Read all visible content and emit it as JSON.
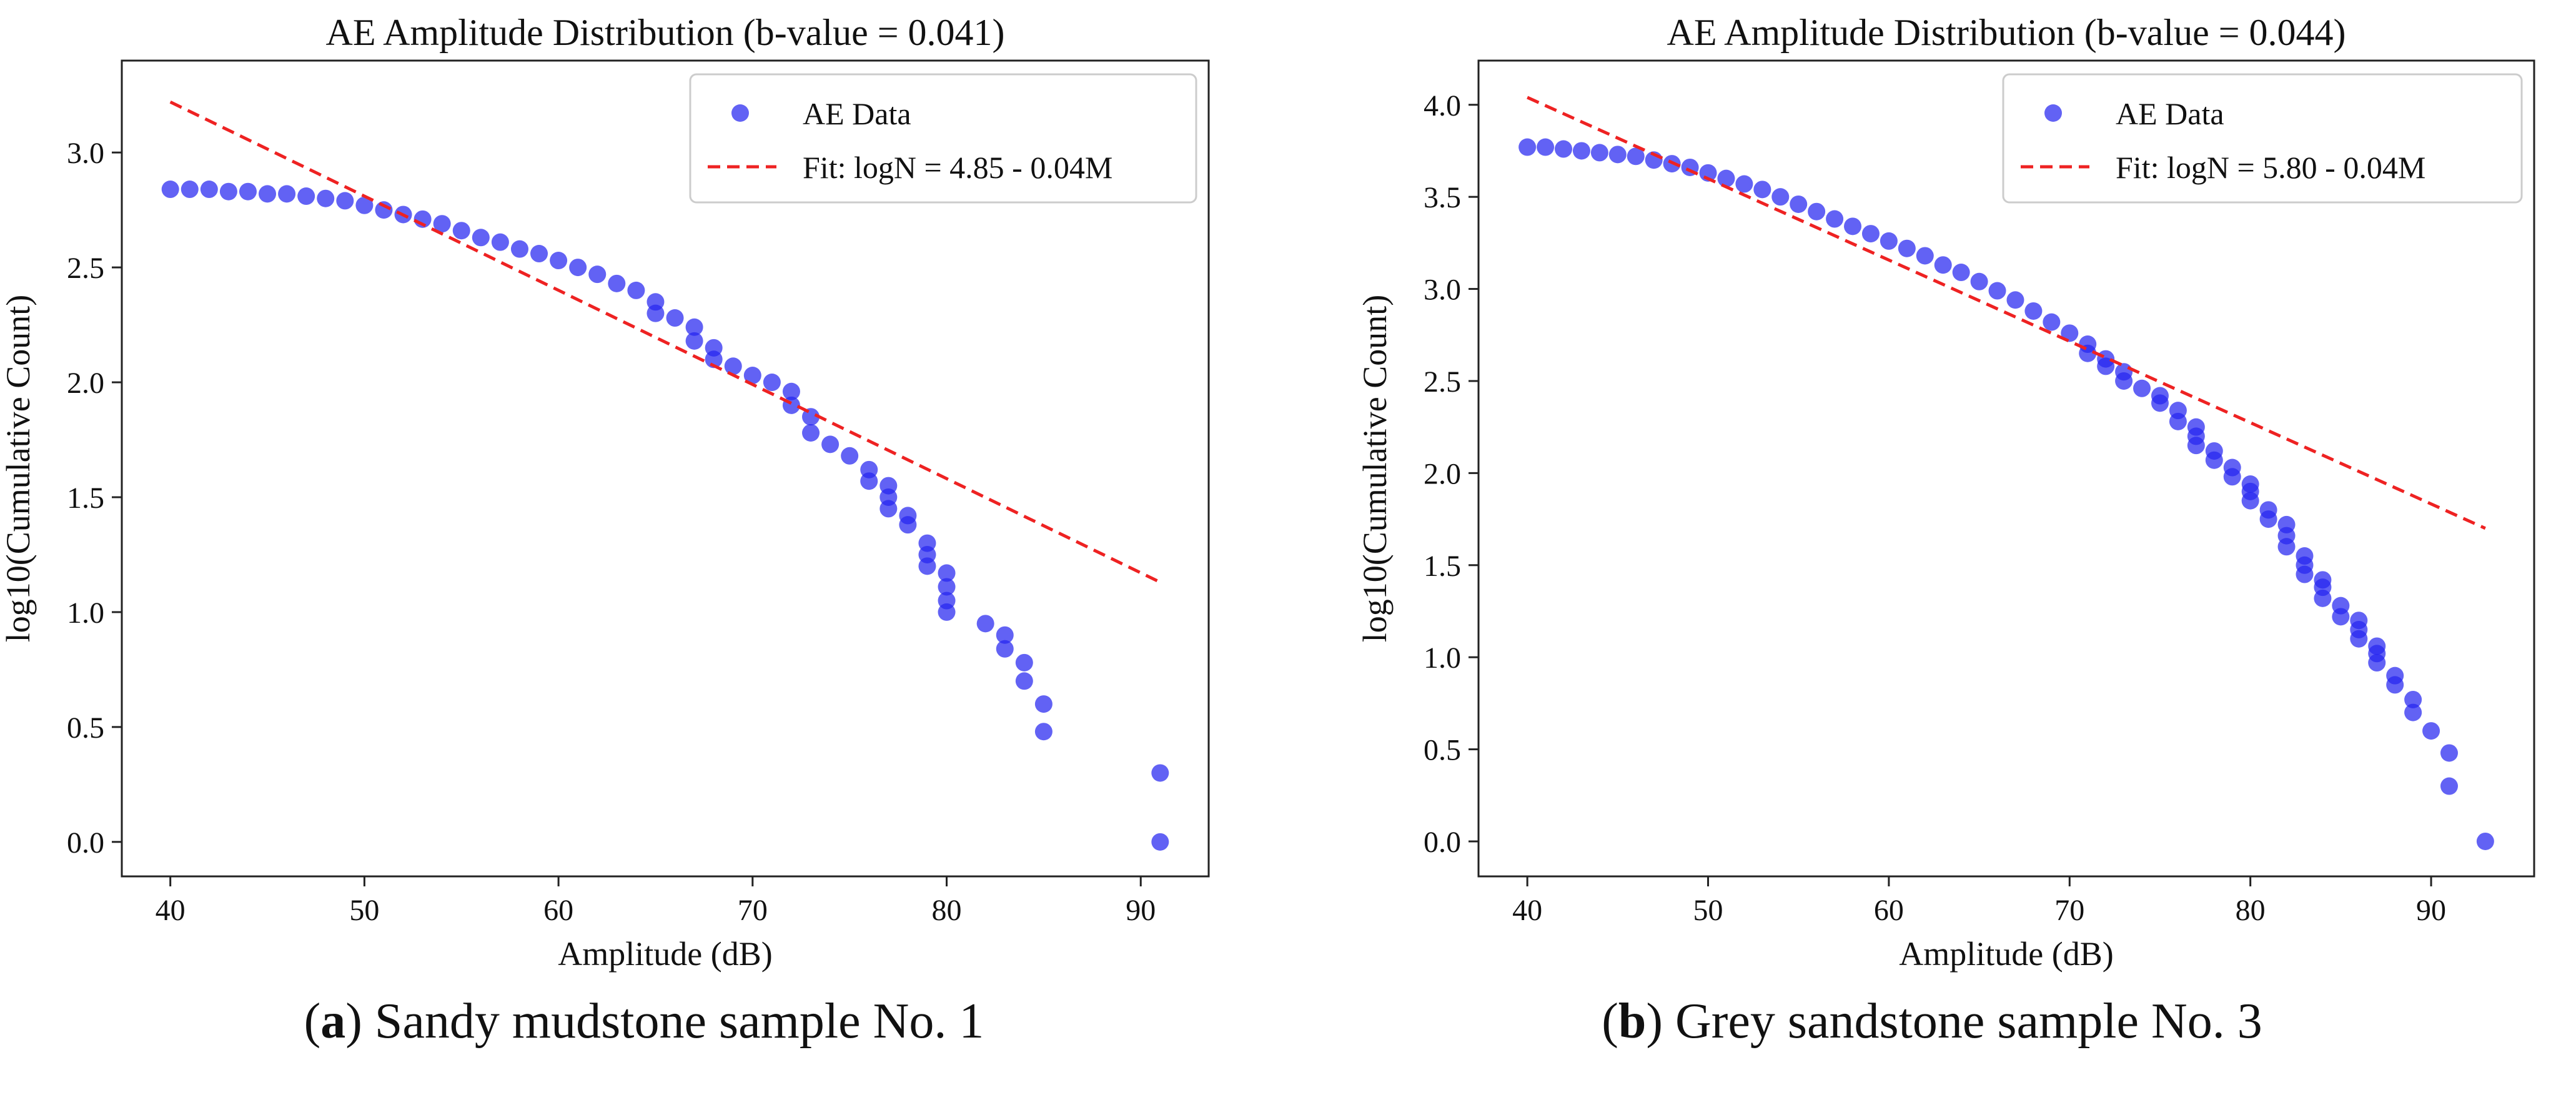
{
  "chart_data": [
    {
      "type": "scatter",
      "title": "AE Amplitude Distribution (b-value = 0.041)",
      "xlabel": "Amplitude (dB)",
      "ylabel": "log10(Cumulative Count)",
      "xlim": [
        37.5,
        93.5
      ],
      "ylim": [
        -0.15,
        3.4
      ],
      "xticks": [
        40,
        50,
        60,
        70,
        80,
        90
      ],
      "yticks": [
        "0.0",
        "0.5",
        "1.0",
        "1.5",
        "2.0",
        "2.5",
        "3.0"
      ],
      "legend": {
        "position": "top-right",
        "scatter_label": "AE Data",
        "line_label": "Fit: logN = 4.85 - 0.04M"
      },
      "caption": {
        "letter": "a",
        "text": "Sandy mudstone sample No. 1"
      },
      "series": [
        {
          "name": "AE Data",
          "kind": "scatter",
          "color": "#2525f0",
          "points": [
            [
              40,
              2.84
            ],
            [
              41,
              2.84
            ],
            [
              42,
              2.84
            ],
            [
              43,
              2.83
            ],
            [
              44,
              2.83
            ],
            [
              45,
              2.82
            ],
            [
              46,
              2.82
            ],
            [
              47,
              2.81
            ],
            [
              48,
              2.8
            ],
            [
              49,
              2.79
            ],
            [
              50,
              2.77
            ],
            [
              51,
              2.75
            ],
            [
              52,
              2.73
            ],
            [
              53,
              2.71
            ],
            [
              54,
              2.69
            ],
            [
              55,
              2.66
            ],
            [
              56,
              2.63
            ],
            [
              57,
              2.61
            ],
            [
              58,
              2.58
            ],
            [
              59,
              2.56
            ],
            [
              60,
              2.53
            ],
            [
              61,
              2.5
            ],
            [
              62,
              2.47
            ],
            [
              63,
              2.43
            ],
            [
              64,
              2.4
            ],
            [
              65,
              2.35
            ],
            [
              65,
              2.3
            ],
            [
              66,
              2.28
            ],
            [
              67,
              2.24
            ],
            [
              67,
              2.18
            ],
            [
              68,
              2.15
            ],
            [
              68,
              2.1
            ],
            [
              69,
              2.07
            ],
            [
              70,
              2.03
            ],
            [
              71,
              2.0
            ],
            [
              72,
              1.96
            ],
            [
              72,
              1.9
            ],
            [
              73,
              1.85
            ],
            [
              73,
              1.78
            ],
            [
              74,
              1.73
            ],
            [
              75,
              1.68
            ],
            [
              76,
              1.62
            ],
            [
              76,
              1.57
            ],
            [
              77,
              1.55
            ],
            [
              77,
              1.5
            ],
            [
              77,
              1.45
            ],
            [
              78,
              1.42
            ],
            [
              78,
              1.38
            ],
            [
              79,
              1.3
            ],
            [
              79,
              1.25
            ],
            [
              79,
              1.2
            ],
            [
              80,
              1.17
            ],
            [
              80,
              1.11
            ],
            [
              80,
              1.05
            ],
            [
              80,
              1.0
            ],
            [
              82,
              0.95
            ],
            [
              83,
              0.9
            ],
            [
              83,
              0.84
            ],
            [
              84,
              0.78
            ],
            [
              84,
              0.7
            ],
            [
              85,
              0.6
            ],
            [
              85,
              0.48
            ],
            [
              91,
              0.3
            ],
            [
              91,
              0.0
            ]
          ]
        },
        {
          "name": "Fit: logN = 4.85 - 0.04M",
          "kind": "line",
          "color": "#ee2222",
          "points": [
            [
              40,
              3.22
            ],
            [
              91,
              1.13
            ]
          ]
        }
      ]
    },
    {
      "type": "scatter",
      "title": "AE Amplitude Distribution (b-value = 0.044)",
      "xlabel": "Amplitude (dB)",
      "ylabel": "log10(Cumulative Count)",
      "xlim": [
        37.3,
        95.7
      ],
      "ylim": [
        -0.19,
        4.24
      ],
      "xticks": [
        40,
        50,
        60,
        70,
        80,
        90
      ],
      "yticks": [
        "0.0",
        "0.5",
        "1.0",
        "1.5",
        "2.0",
        "2.5",
        "3.0",
        "3.5",
        "4.0"
      ],
      "legend": {
        "position": "top-right",
        "scatter_label": "AE Data",
        "line_label": "Fit: logN = 5.80 - 0.04M"
      },
      "caption": {
        "letter": "b",
        "text": "Grey sandstone sample No. 3"
      },
      "series": [
        {
          "name": "AE Data",
          "kind": "scatter",
          "color": "#2525f0",
          "points": [
            [
              40,
              3.77
            ],
            [
              41,
              3.77
            ],
            [
              42,
              3.76
            ],
            [
              43,
              3.75
            ],
            [
              44,
              3.74
            ],
            [
              45,
              3.73
            ],
            [
              46,
              3.72
            ],
            [
              47,
              3.7
            ],
            [
              48,
              3.68
            ],
            [
              49,
              3.66
            ],
            [
              50,
              3.63
            ],
            [
              51,
              3.6
            ],
            [
              52,
              3.57
            ],
            [
              53,
              3.54
            ],
            [
              54,
              3.5
            ],
            [
              55,
              3.46
            ],
            [
              56,
              3.42
            ],
            [
              57,
              3.38
            ],
            [
              58,
              3.34
            ],
            [
              59,
              3.3
            ],
            [
              60,
              3.26
            ],
            [
              61,
              3.22
            ],
            [
              62,
              3.18
            ],
            [
              63,
              3.13
            ],
            [
              64,
              3.09
            ],
            [
              65,
              3.04
            ],
            [
              66,
              2.99
            ],
            [
              67,
              2.94
            ],
            [
              68,
              2.88
            ],
            [
              69,
              2.82
            ],
            [
              70,
              2.76
            ],
            [
              71,
              2.7
            ],
            [
              71,
              2.65
            ],
            [
              72,
              2.62
            ],
            [
              72,
              2.58
            ],
            [
              73,
              2.55
            ],
            [
              73,
              2.5
            ],
            [
              74,
              2.46
            ],
            [
              75,
              2.42
            ],
            [
              75,
              2.38
            ],
            [
              76,
              2.34
            ],
            [
              76,
              2.28
            ],
            [
              77,
              2.25
            ],
            [
              77,
              2.2
            ],
            [
              77,
              2.15
            ],
            [
              78,
              2.12
            ],
            [
              78,
              2.07
            ],
            [
              79,
              2.03
            ],
            [
              79,
              1.98
            ],
            [
              80,
              1.94
            ],
            [
              80,
              1.9
            ],
            [
              80,
              1.85
            ],
            [
              81,
              1.8
            ],
            [
              81,
              1.75
            ],
            [
              82,
              1.72
            ],
            [
              82,
              1.66
            ],
            [
              82,
              1.6
            ],
            [
              83,
              1.55
            ],
            [
              83,
              1.5
            ],
            [
              83,
              1.45
            ],
            [
              84,
              1.42
            ],
            [
              84,
              1.38
            ],
            [
              84,
              1.32
            ],
            [
              85,
              1.28
            ],
            [
              85,
              1.22
            ],
            [
              86,
              1.2
            ],
            [
              86,
              1.15
            ],
            [
              86,
              1.1
            ],
            [
              87,
              1.06
            ],
            [
              87,
              1.02
            ],
            [
              87,
              0.97
            ],
            [
              88,
              0.9
            ],
            [
              88,
              0.85
            ],
            [
              89,
              0.77
            ],
            [
              89,
              0.7
            ],
            [
              90,
              0.6
            ],
            [
              91,
              0.48
            ],
            [
              91,
              0.3
            ],
            [
              93,
              0.0
            ]
          ]
        },
        {
          "name": "Fit: logN = 5.80 - 0.04M",
          "kind": "line",
          "color": "#ee2222",
          "points": [
            [
              40,
              4.04
            ],
            [
              93,
              1.7
            ]
          ]
        }
      ]
    }
  ]
}
